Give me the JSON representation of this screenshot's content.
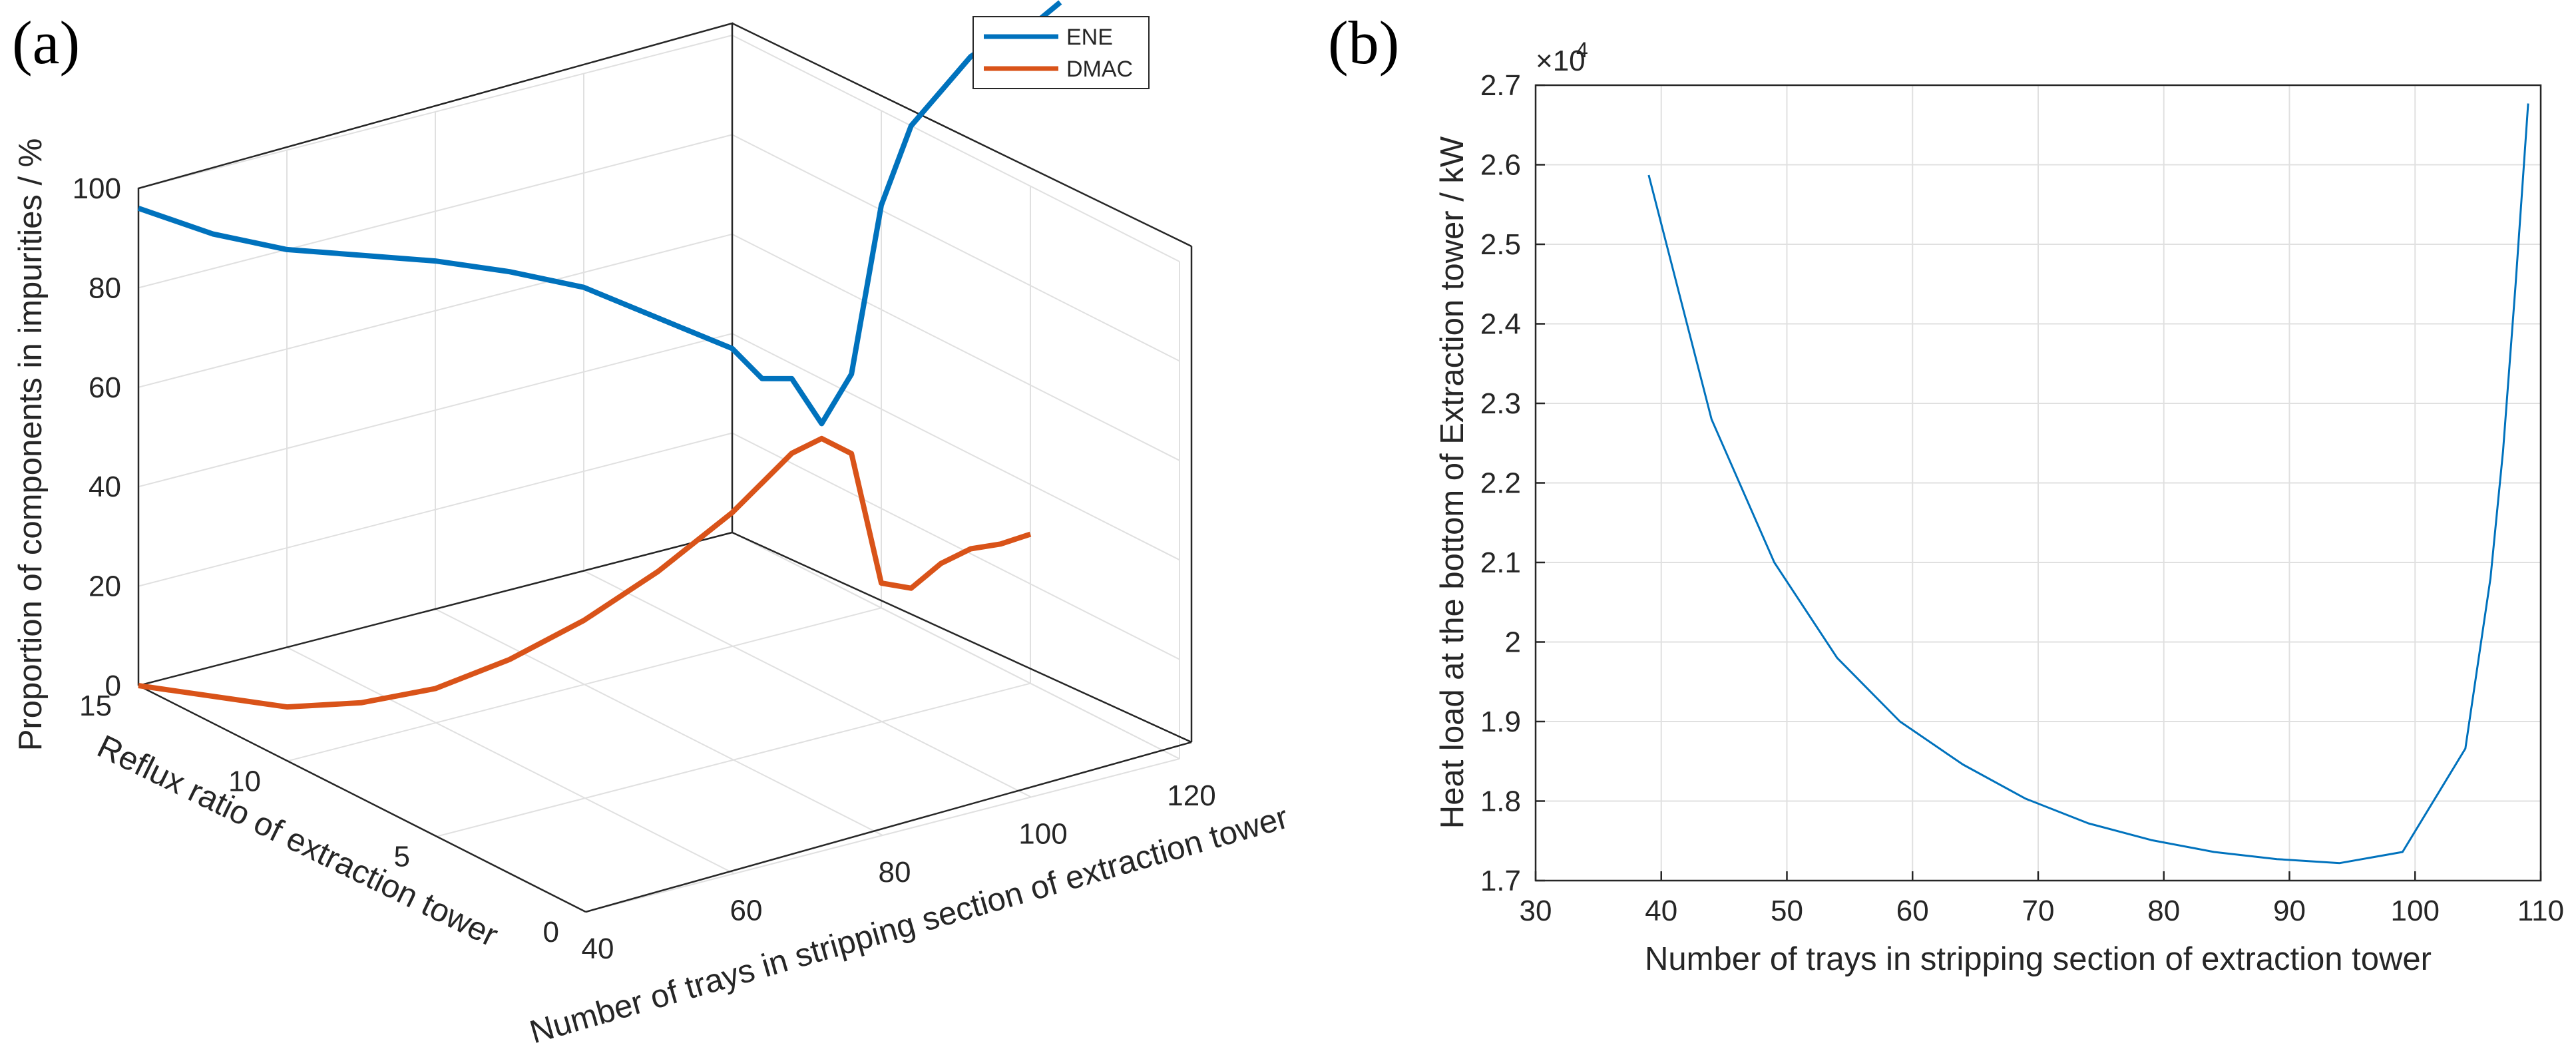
{
  "panels": {
    "a": {
      "label": "(a)"
    },
    "b": {
      "label": "(b)"
    }
  },
  "colors": {
    "ene": "#0072BD",
    "dmac": "#D95319",
    "axis": "#262626",
    "grid": "#e0e0e0"
  },
  "chart_data": [
    {
      "id": "a",
      "type": "line3d",
      "xlabel": "Number of trays in stripping section of extraction tower",
      "ylabel": "Reflux ratio of extraction tower",
      "zlabel": "Proportion of components in impurities / %",
      "xlim": [
        40,
        120
      ],
      "ylim": [
        0,
        15
      ],
      "zlim": [
        0,
        100
      ],
      "xticks": [
        "40",
        "60",
        "80",
        "100",
        "120"
      ],
      "yticks": [
        "0",
        "5",
        "10",
        "15"
      ],
      "zticks": [
        "0",
        "20",
        "40",
        "60",
        "80",
        "100"
      ],
      "legend": {
        "location": "top-right",
        "entries": [
          "ENE",
          "DMAC"
        ]
      },
      "series": [
        {
          "name": "ENE",
          "points": [
            [
              40,
              15,
              96
            ],
            [
              50,
              15,
              87
            ],
            [
              60,
              15,
              80
            ],
            [
              70,
              15,
              75
            ],
            [
              80,
              15,
              70
            ],
            [
              90,
              15,
              64
            ],
            [
              100,
              15,
              57
            ],
            [
              110,
              15,
              47
            ],
            [
              120,
              15,
              37
            ],
            [
              120,
              14,
              34
            ],
            [
              120,
              13,
              37
            ],
            [
              120,
              12,
              31
            ],
            [
              120,
              11,
              44
            ],
            [
              120,
              10,
              81
            ],
            [
              120,
              9,
              100
            ],
            [
              120,
              8,
              110
            ],
            [
              120,
              7,
              120
            ],
            [
              120,
              6,
              127
            ],
            [
              120,
              5,
              132
            ],
            [
              120,
              4,
              140
            ]
          ]
        },
        {
          "name": "DMAC",
          "points": [
            [
              40,
              15,
              0
            ],
            [
              50,
              15,
              -6
            ],
            [
              60,
              15,
              -12
            ],
            [
              70,
              15,
              -15
            ],
            [
              80,
              15,
              -16
            ],
            [
              90,
              15,
              -14
            ],
            [
              100,
              15,
              -10
            ],
            [
              110,
              15,
              -4
            ],
            [
              120,
              15,
              4
            ],
            [
              120,
              14,
              13
            ],
            [
              120,
              13,
              22
            ],
            [
              120,
              12,
              28
            ],
            [
              120,
              11,
              28
            ],
            [
              120,
              10,
              5
            ],
            [
              120,
              9,
              7
            ],
            [
              120,
              8,
              15
            ],
            [
              120,
              7,
              21
            ],
            [
              120,
              6,
              25
            ],
            [
              120,
              5,
              30
            ]
          ]
        }
      ]
    },
    {
      "id": "b",
      "type": "line",
      "xlabel": "Number of trays in stripping section of extraction tower",
      "ylabel": "Heat load at the bottom of Extraction tower / kW",
      "exponent_label": "×10",
      "exponent_power": "4",
      "xlim": [
        30,
        110
      ],
      "ylim": [
        1.7,
        2.7
      ],
      "xticks": [
        "30",
        "40",
        "50",
        "60",
        "70",
        "80",
        "90",
        "100",
        "110"
      ],
      "yticks": [
        "1.7",
        "1.8",
        "1.9",
        "2",
        "2.1",
        "2.2",
        "2.3",
        "2.4",
        "2.5",
        "2.6",
        "2.7"
      ],
      "grid": true,
      "series": [
        {
          "name": "Heat load",
          "x": [
            39,
            44,
            49,
            54,
            59,
            64,
            69,
            74,
            79,
            84,
            89,
            94,
            99,
            104,
            106,
            107,
            108,
            109
          ],
          "y": [
            2.587,
            2.28,
            2.1,
            1.98,
            1.9,
            1.846,
            1.803,
            1.772,
            1.751,
            1.736,
            1.727,
            1.722,
            1.736,
            1.866,
            2.08,
            2.24,
            2.45,
            2.677
          ]
        }
      ]
    }
  ]
}
